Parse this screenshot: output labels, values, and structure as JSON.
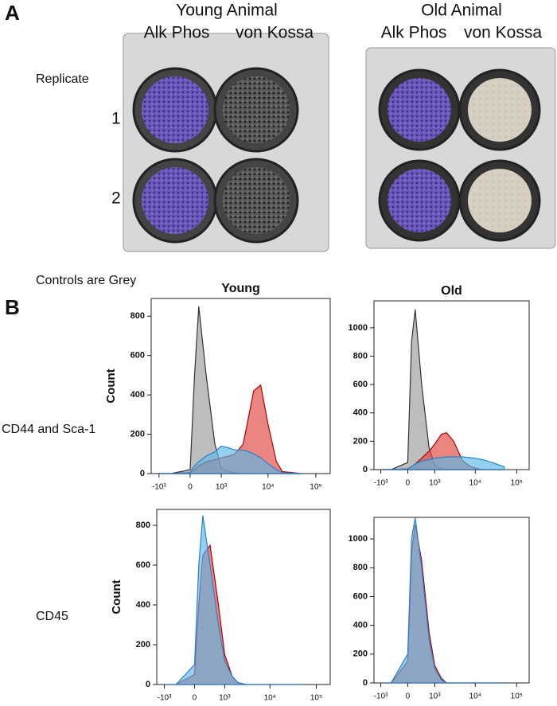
{
  "panel_a": {
    "letter": "A",
    "young_title": "Young Animal",
    "old_title": "Old Animal",
    "young_col1": "Alk Phos",
    "young_col2": "von Kossa",
    "old_col1": "Alk Phos",
    "old_col2": "von Kossa",
    "replicate": "Replicate",
    "rep1": "1",
    "rep2": "2"
  },
  "panel_b": {
    "note": "Controls are Grey",
    "letter": "B",
    "row1": "CD44 and Sca-1",
    "row2": "CD45"
  },
  "chart_data": [
    {
      "type": "area",
      "title": "Young",
      "y_label": "Count",
      "xscale": "biexponential",
      "x": [
        -1000,
        -500,
        0,
        100,
        200,
        400,
        700,
        1000,
        1500,
        2000,
        3000,
        4000,
        5000,
        7000,
        10000,
        15000,
        20000,
        50000
      ],
      "series": [
        {
          "color": "#9a9a9a",
          "values": [
            0,
            0,
            20,
            500,
            850,
            500,
            150,
            30,
            10,
            5,
            0,
            0,
            0,
            0,
            0,
            0,
            0,
            0
          ]
        },
        {
          "color": "#e0433f",
          "values": [
            0,
            0,
            5,
            20,
            40,
            60,
            70,
            80,
            90,
            100,
            150,
            300,
            420,
            450,
            250,
            60,
            10,
            0
          ]
        },
        {
          "color": "#5bb8e8",
          "values": [
            0,
            0,
            5,
            40,
            60,
            90,
            110,
            140,
            130,
            120,
            120,
            110,
            100,
            80,
            50,
            20,
            5,
            0
          ]
        }
      ],
      "xlim": [
        -1500,
        200000
      ],
      "ylim": [
        0,
        890
      ],
      "xticks": [
        {
          "value": -1000,
          "label": "-10³"
        },
        0,
        {
          "value": 1000,
          "label": "10³"
        },
        {
          "value": 10000,
          "label": "10⁴"
        },
        {
          "value": 100000,
          "label": "10⁵"
        }
      ],
      "yticks": [
        0,
        200,
        400,
        600,
        800
      ]
    },
    {
      "type": "area",
      "title": "Old",
      "xscale": "biexponential",
      "x": [
        -1000,
        -500,
        0,
        100,
        200,
        400,
        700,
        1000,
        1500,
        2000,
        3000,
        4000,
        5000,
        7000,
        10000,
        15000,
        20000,
        50000
      ],
      "series": [
        {
          "color": "#9a9a9a",
          "values": [
            0,
            0,
            50,
            900,
            1130,
            600,
            150,
            30,
            5,
            0,
            0,
            0,
            0,
            0,
            0,
            0,
            0,
            0
          ]
        },
        {
          "color": "#e0433f",
          "values": [
            0,
            0,
            5,
            20,
            40,
            80,
            130,
            180,
            250,
            260,
            200,
            120,
            60,
            30,
            10,
            0,
            0,
            0
          ]
        },
        {
          "color": "#5bb8e8",
          "values": [
            0,
            0,
            5,
            20,
            40,
            60,
            70,
            80,
            85,
            90,
            90,
            90,
            90,
            85,
            80,
            70,
            60,
            20
          ]
        }
      ],
      "xlim": [
        -1500,
        200000
      ],
      "ylim": [
        0,
        1190
      ],
      "xticks": [
        {
          "value": -1000,
          "label": "-10³"
        },
        0,
        {
          "value": 1000,
          "label": "10³"
        },
        {
          "value": 10000,
          "label": "10⁴"
        },
        {
          "value": 100000,
          "label": "10⁵"
        }
      ],
      "yticks": [
        0,
        200,
        400,
        600,
        800,
        1000
      ]
    },
    {
      "type": "area",
      "y_label": "Count",
      "xscale": "biexponential",
      "x": [
        -1000,
        -500,
        0,
        100,
        200,
        400,
        700,
        1000,
        1500,
        2000,
        3000,
        4000,
        5000,
        7000,
        10000,
        15000,
        20000,
        50000
      ],
      "series": [
        {
          "color": "#e0433f",
          "values": [
            0,
            0,
            50,
            400,
            650,
            700,
            400,
            150,
            40,
            10,
            0,
            0,
            0,
            0,
            0,
            0,
            0,
            0
          ]
        },
        {
          "color": "#5bb8e8",
          "values": [
            0,
            0,
            100,
            600,
            850,
            600,
            300,
            120,
            40,
            10,
            0,
            0,
            0,
            0,
            0,
            0,
            0,
            0
          ]
        }
      ],
      "xlim": [
        -1500,
        200000
      ],
      "ylim": [
        0,
        880
      ],
      "xticks": [
        {
          "value": -1000,
          "label": "-10³"
        },
        0,
        {
          "value": 1000,
          "label": "10³"
        },
        {
          "value": 10000,
          "label": "10⁴"
        },
        {
          "value": 100000,
          "label": "10⁵"
        }
      ],
      "yticks": [
        0,
        200,
        400,
        600,
        800
      ]
    },
    {
      "type": "area",
      "xscale": "biexponential",
      "x": [
        -1000,
        -500,
        0,
        100,
        200,
        400,
        700,
        1000,
        1500,
        2000,
        3000,
        4000,
        5000,
        7000,
        10000,
        15000,
        20000,
        50000
      ],
      "series": [
        {
          "color": "#e0433f",
          "values": [
            0,
            0,
            150,
            900,
            1100,
            850,
            350,
            120,
            30,
            0,
            0,
            0,
            0,
            0,
            0,
            0,
            0,
            0
          ]
        },
        {
          "color": "#5bb8e8",
          "values": [
            0,
            0,
            200,
            1000,
            1150,
            800,
            300,
            100,
            20,
            0,
            0,
            0,
            0,
            0,
            0,
            0,
            0,
            0
          ]
        }
      ],
      "xlim": [
        -1500,
        200000
      ],
      "ylim": [
        0,
        1150
      ],
      "xticks": [
        {
          "value": -1000,
          "label": "-10³"
        },
        0,
        {
          "value": 1000,
          "label": "10³"
        },
        {
          "value": 10000,
          "label": "10⁴"
        },
        {
          "value": 100000,
          "label": "10⁵"
        }
      ],
      "yticks": [
        0,
        200,
        400,
        600,
        800,
        1000
      ]
    }
  ]
}
